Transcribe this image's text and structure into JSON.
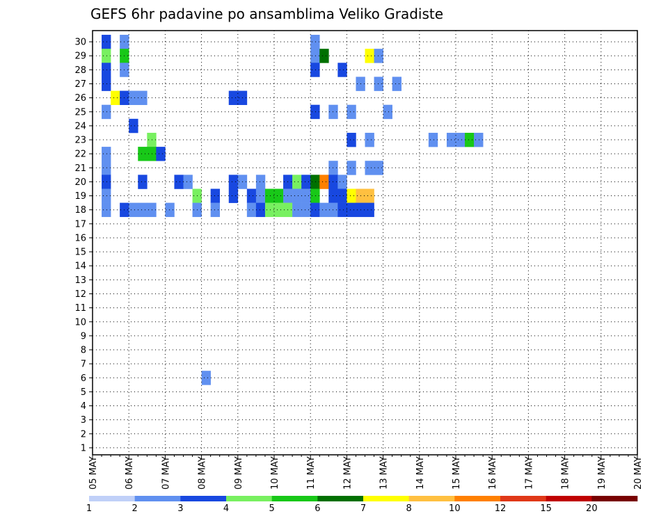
{
  "chart_data": {
    "type": "heatmap",
    "title": "GEFS 6hr padavine po ansamblima Veliko Gradiste",
    "x_labels": [
      "05 MAY",
      "06 MAY",
      "07 MAY",
      "08 MAY",
      "09 MAY",
      "10 MAY",
      "11 MAY",
      "12 MAY",
      "13 MAY",
      "14 MAY",
      "15 MAY",
      "16 MAY",
      "17 MAY",
      "18 MAY",
      "19 MAY",
      "20 MAY"
    ],
    "y_labels": [
      "1",
      "2",
      "3",
      "4",
      "5",
      "6",
      "7",
      "8",
      "9",
      "10",
      "11",
      "12",
      "13",
      "14",
      "15",
      "16",
      "17",
      "18",
      "19",
      "20",
      "21",
      "22",
      "23",
      "24",
      "25",
      "26",
      "27",
      "28",
      "29",
      "30"
    ],
    "steps_per_day": 4,
    "grid": "dotted",
    "levels": [
      "1",
      "2",
      "3",
      "4",
      "5",
      "6",
      "7",
      "8",
      "10",
      "12",
      "15",
      "20"
    ],
    "colors": [
      "#c0d0f8",
      "#6090f0",
      "#1848e0",
      "#78f060",
      "#18c818",
      "#007000",
      "#ffff00",
      "#ffc040",
      "#ff8000",
      "#e03818",
      "#c00000",
      "#780000"
    ],
    "cells": [
      [
        1,
        0,
        2
      ],
      [
        3,
        0,
        1
      ],
      [
        24,
        0,
        1
      ],
      [
        12,
        24,
        1
      ],
      [
        1,
        1,
        3
      ],
      [
        3,
        1,
        4
      ],
      [
        24,
        1,
        1
      ],
      [
        25,
        1,
        5
      ],
      [
        30,
        1,
        6
      ],
      [
        31,
        1,
        1
      ],
      [
        1,
        2,
        2
      ],
      [
        3,
        2,
        1
      ],
      [
        24,
        2,
        2
      ],
      [
        27,
        2,
        2
      ],
      [
        1,
        3,
        2
      ],
      [
        29,
        3,
        1
      ],
      [
        31,
        3,
        1
      ],
      [
        33,
        3,
        1
      ],
      [
        2,
        4,
        6
      ],
      [
        3,
        4,
        2
      ],
      [
        4,
        4,
        1
      ],
      [
        5,
        4,
        1
      ],
      [
        15,
        4,
        2
      ],
      [
        16,
        4,
        2
      ],
      [
        1,
        5,
        1
      ],
      [
        24,
        5,
        2
      ],
      [
        26,
        5,
        1
      ],
      [
        28,
        5,
        1
      ],
      [
        32,
        5,
        1
      ],
      [
        4,
        6,
        2
      ],
      [
        6,
        7,
        3
      ],
      [
        28,
        7,
        2
      ],
      [
        30,
        7,
        1
      ],
      [
        37,
        7,
        1
      ],
      [
        39,
        7,
        1
      ],
      [
        40,
        7,
        1
      ],
      [
        41,
        7,
        4
      ],
      [
        42,
        7,
        1
      ],
      [
        1,
        8,
        1
      ],
      [
        5,
        8,
        4
      ],
      [
        6,
        8,
        4
      ],
      [
        7,
        8,
        2
      ],
      [
        1,
        9,
        1
      ],
      [
        26,
        9,
        1
      ],
      [
        28,
        9,
        1
      ],
      [
        30,
        9,
        1
      ],
      [
        31,
        9,
        1
      ],
      [
        1,
        10,
        2
      ],
      [
        5,
        10,
        2
      ],
      [
        9,
        10,
        2
      ],
      [
        10,
        10,
        1
      ],
      [
        15,
        10,
        2
      ],
      [
        16,
        10,
        1
      ],
      [
        18,
        10,
        1
      ],
      [
        21,
        10,
        2
      ],
      [
        22,
        10,
        3
      ],
      [
        23,
        10,
        2
      ],
      [
        24,
        10,
        5
      ],
      [
        25,
        10,
        8
      ],
      [
        26,
        10,
        2
      ],
      [
        27,
        10,
        1
      ],
      [
        1,
        11,
        1
      ],
      [
        11,
        11,
        3
      ],
      [
        13,
        11,
        2
      ],
      [
        15,
        11,
        2
      ],
      [
        17,
        11,
        2
      ],
      [
        18,
        11,
        1
      ],
      [
        19,
        11,
        4
      ],
      [
        20,
        11,
        4
      ],
      [
        21,
        11,
        1
      ],
      [
        22,
        11,
        1
      ],
      [
        23,
        11,
        1
      ],
      [
        24,
        11,
        4
      ],
      [
        26,
        11,
        2
      ],
      [
        27,
        11,
        2
      ],
      [
        28,
        11,
        6
      ],
      [
        29,
        11,
        7
      ],
      [
        30,
        11,
        7
      ],
      [
        1,
        12,
        1
      ],
      [
        3,
        12,
        2
      ],
      [
        4,
        12,
        1
      ],
      [
        5,
        12,
        1
      ],
      [
        6,
        12,
        1
      ],
      [
        8,
        12,
        1
      ],
      [
        11,
        12,
        1
      ],
      [
        13,
        12,
        1
      ],
      [
        17,
        12,
        1
      ],
      [
        18,
        12,
        2
      ],
      [
        19,
        12,
        3
      ],
      [
        20,
        12,
        3
      ],
      [
        21,
        12,
        3
      ],
      [
        22,
        12,
        1
      ],
      [
        23,
        12,
        1
      ],
      [
        24,
        12,
        2
      ],
      [
        25,
        12,
        1
      ],
      [
        26,
        12,
        1
      ],
      [
        27,
        12,
        2
      ],
      [
        28,
        12,
        2
      ],
      [
        29,
        12,
        2
      ],
      [
        30,
        12,
        2
      ]
    ]
  }
}
